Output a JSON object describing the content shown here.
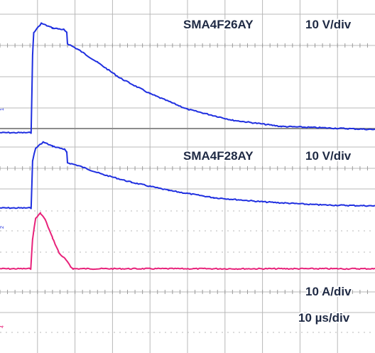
{
  "colors": {
    "voltage_trace": "#1f2fe0",
    "current_trace": "#e8227a",
    "grid": "#b8b8b8",
    "grid_dots": "#9a9a9a",
    "label": "#1f2a44"
  },
  "chart_data": [
    {
      "type": "line",
      "panel": "top",
      "device_label": "SMA4F26AY",
      "scale_label": "10 V/div",
      "channel_marker": "1",
      "series": [
        {
          "name": "SMA4F26AY",
          "color": "#1f2fe0",
          "points": [
            [
              0,
              -2.2
            ],
            [
              0.83,
              -2.2
            ],
            [
              0.87,
              0.3
            ],
            [
              0.9,
              1.0
            ],
            [
              1.1,
              1.3
            ],
            [
              1.4,
              1.15
            ],
            [
              1.7,
              1.1
            ],
            [
              1.78,
              1.0
            ],
            [
              1.8,
              0.65
            ],
            [
              2.1,
              0.45
            ],
            [
              2.6,
              0.05
            ],
            [
              3.2,
              -0.45
            ],
            [
              4.0,
              -0.95
            ],
            [
              5.0,
              -1.45
            ],
            [
              6.2,
              -1.8
            ],
            [
              7.5,
              -2.0
            ],
            [
              10,
              -2.1
            ]
          ]
        }
      ]
    },
    {
      "type": "line",
      "panel": "bottom",
      "device_label": "SMA4F28AY",
      "scale_label_voltage": "10 V/div",
      "scale_label_current": "10 A/div",
      "timebase_label": "10 µs/div",
      "channel_markers": [
        "2",
        "4"
      ],
      "series": [
        {
          "name": "SMA4F28AY",
          "color": "#1f2fe0",
          "points": [
            [
              0,
              -1.2
            ],
            [
              0.83,
              -1.2
            ],
            [
              0.87,
              1.1
            ],
            [
              0.95,
              1.7
            ],
            [
              1.15,
              2.0
            ],
            [
              1.4,
              1.8
            ],
            [
              1.72,
              1.65
            ],
            [
              1.78,
              1.5
            ],
            [
              1.8,
              1.0
            ],
            [
              2.1,
              0.85
            ],
            [
              2.7,
              0.45
            ],
            [
              3.5,
              0.05
            ],
            [
              4.5,
              -0.35
            ],
            [
              5.7,
              -0.7
            ],
            [
              7.0,
              -0.9
            ],
            [
              8.5,
              -1.05
            ],
            [
              10,
              -1.1
            ]
          ]
        },
        {
          "name": "current",
          "color": "#e8227a",
          "points": [
            [
              0,
              -4.15
            ],
            [
              0.82,
              -4.15
            ],
            [
              0.87,
              -2.7
            ],
            [
              0.95,
              -1.7
            ],
            [
              1.08,
              -1.45
            ],
            [
              1.2,
              -1.75
            ],
            [
              1.4,
              -2.65
            ],
            [
              1.58,
              -3.4
            ],
            [
              1.75,
              -3.7
            ],
            [
              1.88,
              -4.05
            ],
            [
              1.95,
              -4.15
            ],
            [
              10,
              -4.15
            ]
          ]
        }
      ]
    }
  ]
}
